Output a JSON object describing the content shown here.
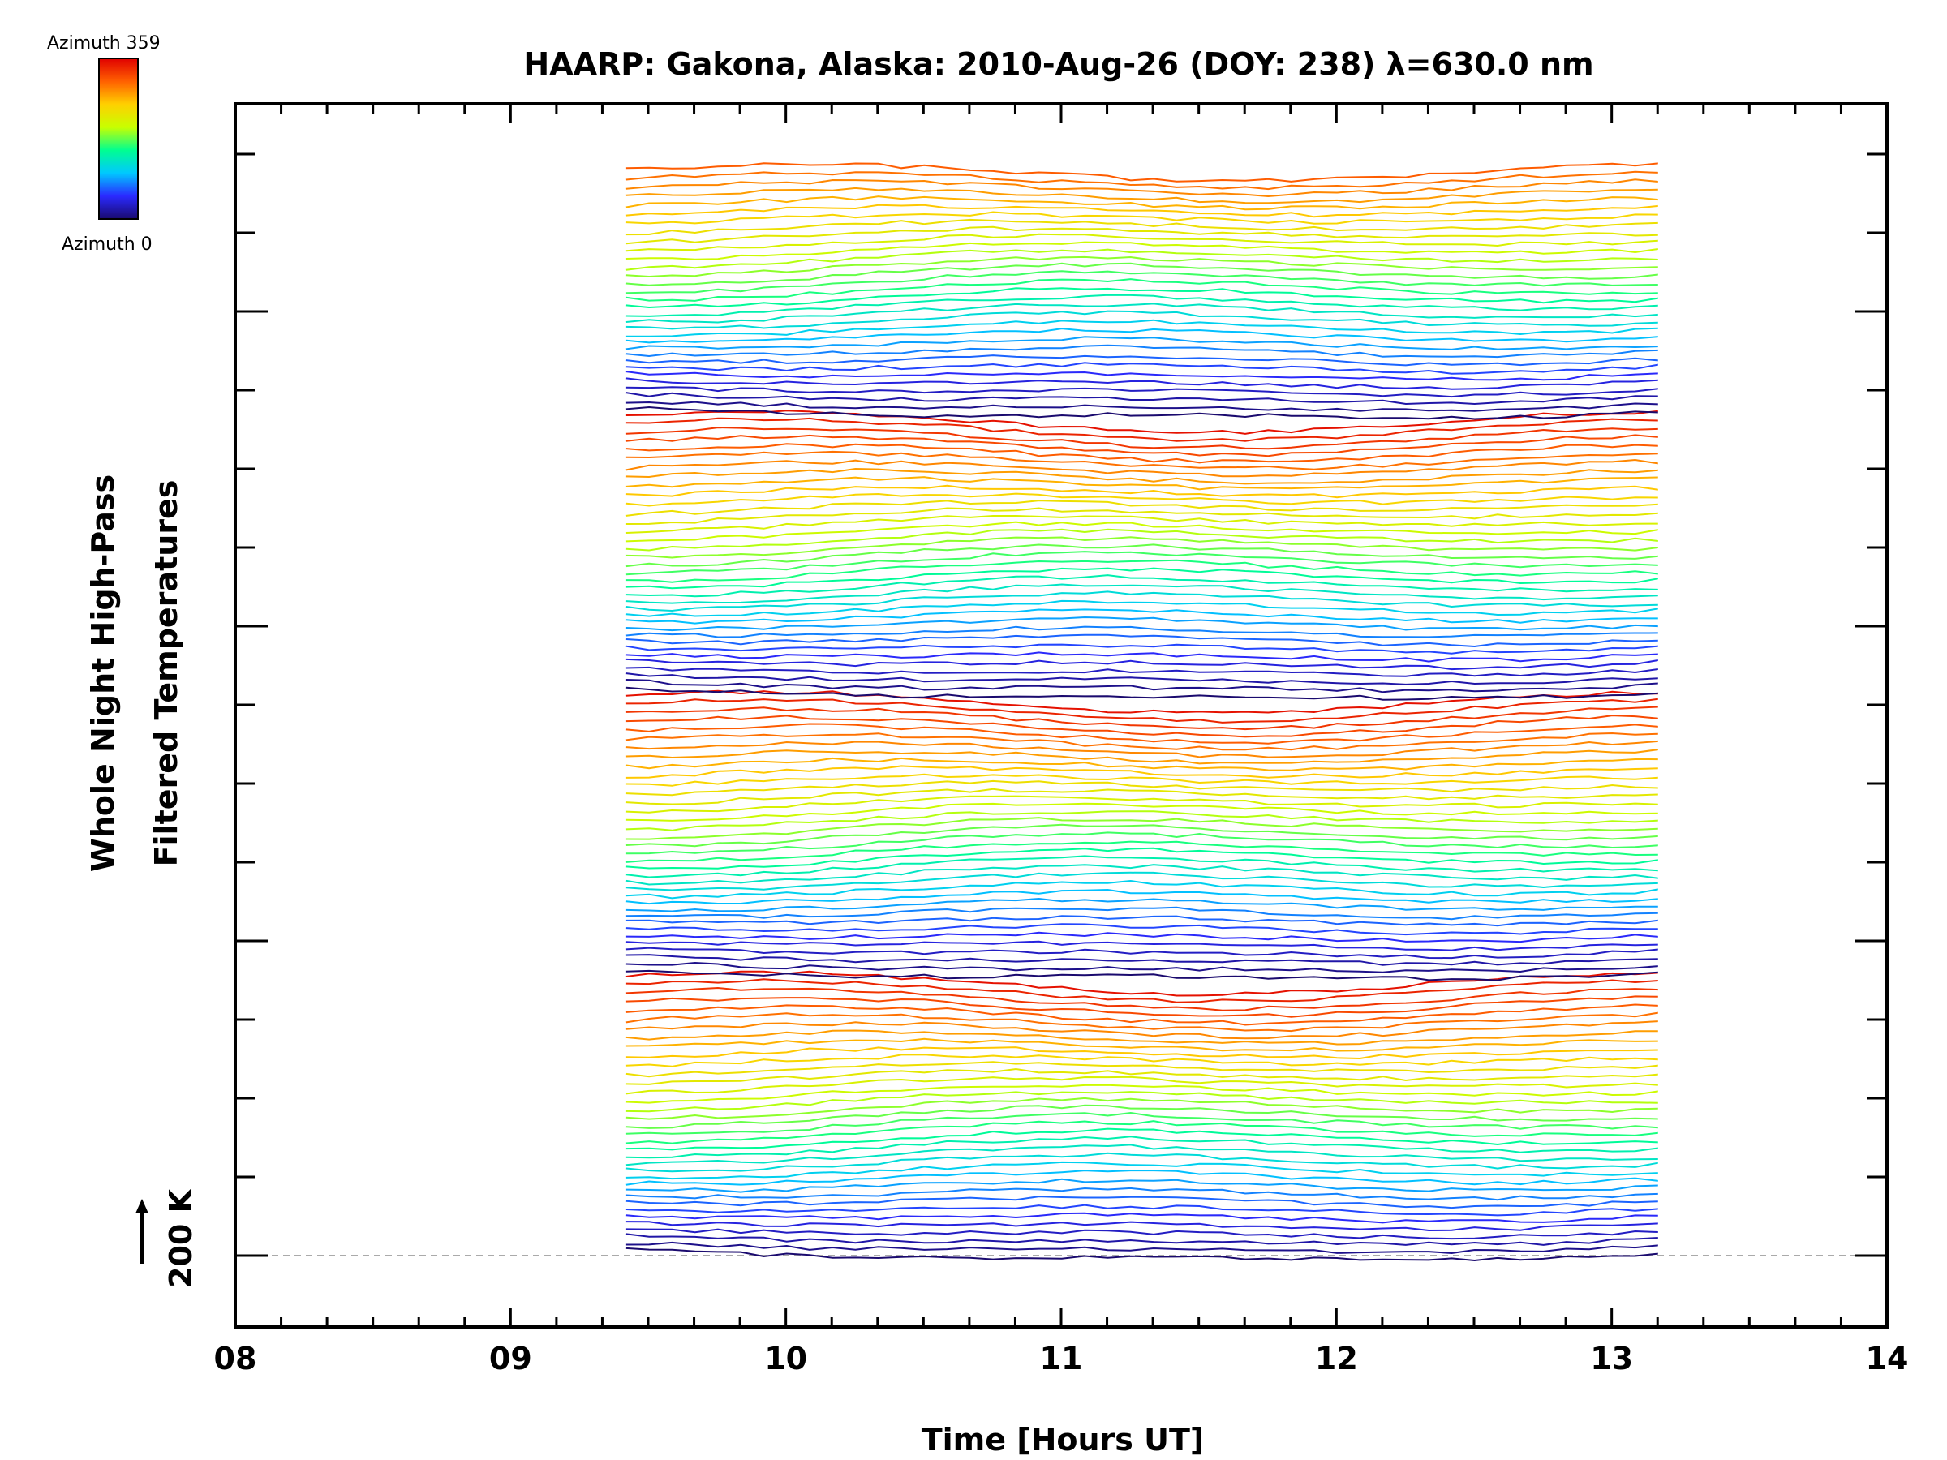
{
  "chart_data": {
    "type": "line",
    "title": "HAARP: Gakona,  Alaska: 2010-Aug-26 (DOY: 238) λ=630.0 nm",
    "xlabel": "Time [Hours UT]",
    "ylabel_line1": "Whole Night High-Pass",
    "ylabel_line2": "Filtered Temperatures",
    "scale_label": "200 K",
    "xlim": [
      8,
      14
    ],
    "xticks": [
      "08",
      "09",
      "10",
      "11",
      "12",
      "13",
      "14"
    ],
    "colorbar": {
      "top_label": "Azimuth 359",
      "bottom_label": "Azimuth 0",
      "min": 0,
      "max": 359,
      "colormap": [
        "#1a0a6e",
        "#2a2aff",
        "#00c8ff",
        "#00ff90",
        "#c8ff00",
        "#ffd000",
        "#ff6000",
        "#e00000"
      ]
    },
    "series_count": 140,
    "time_start": 9.42,
    "time_end": 13.25,
    "time_step": 0.0833,
    "stack_spacing_k": 10,
    "baseline_offset_k": 0,
    "grid": false
  }
}
